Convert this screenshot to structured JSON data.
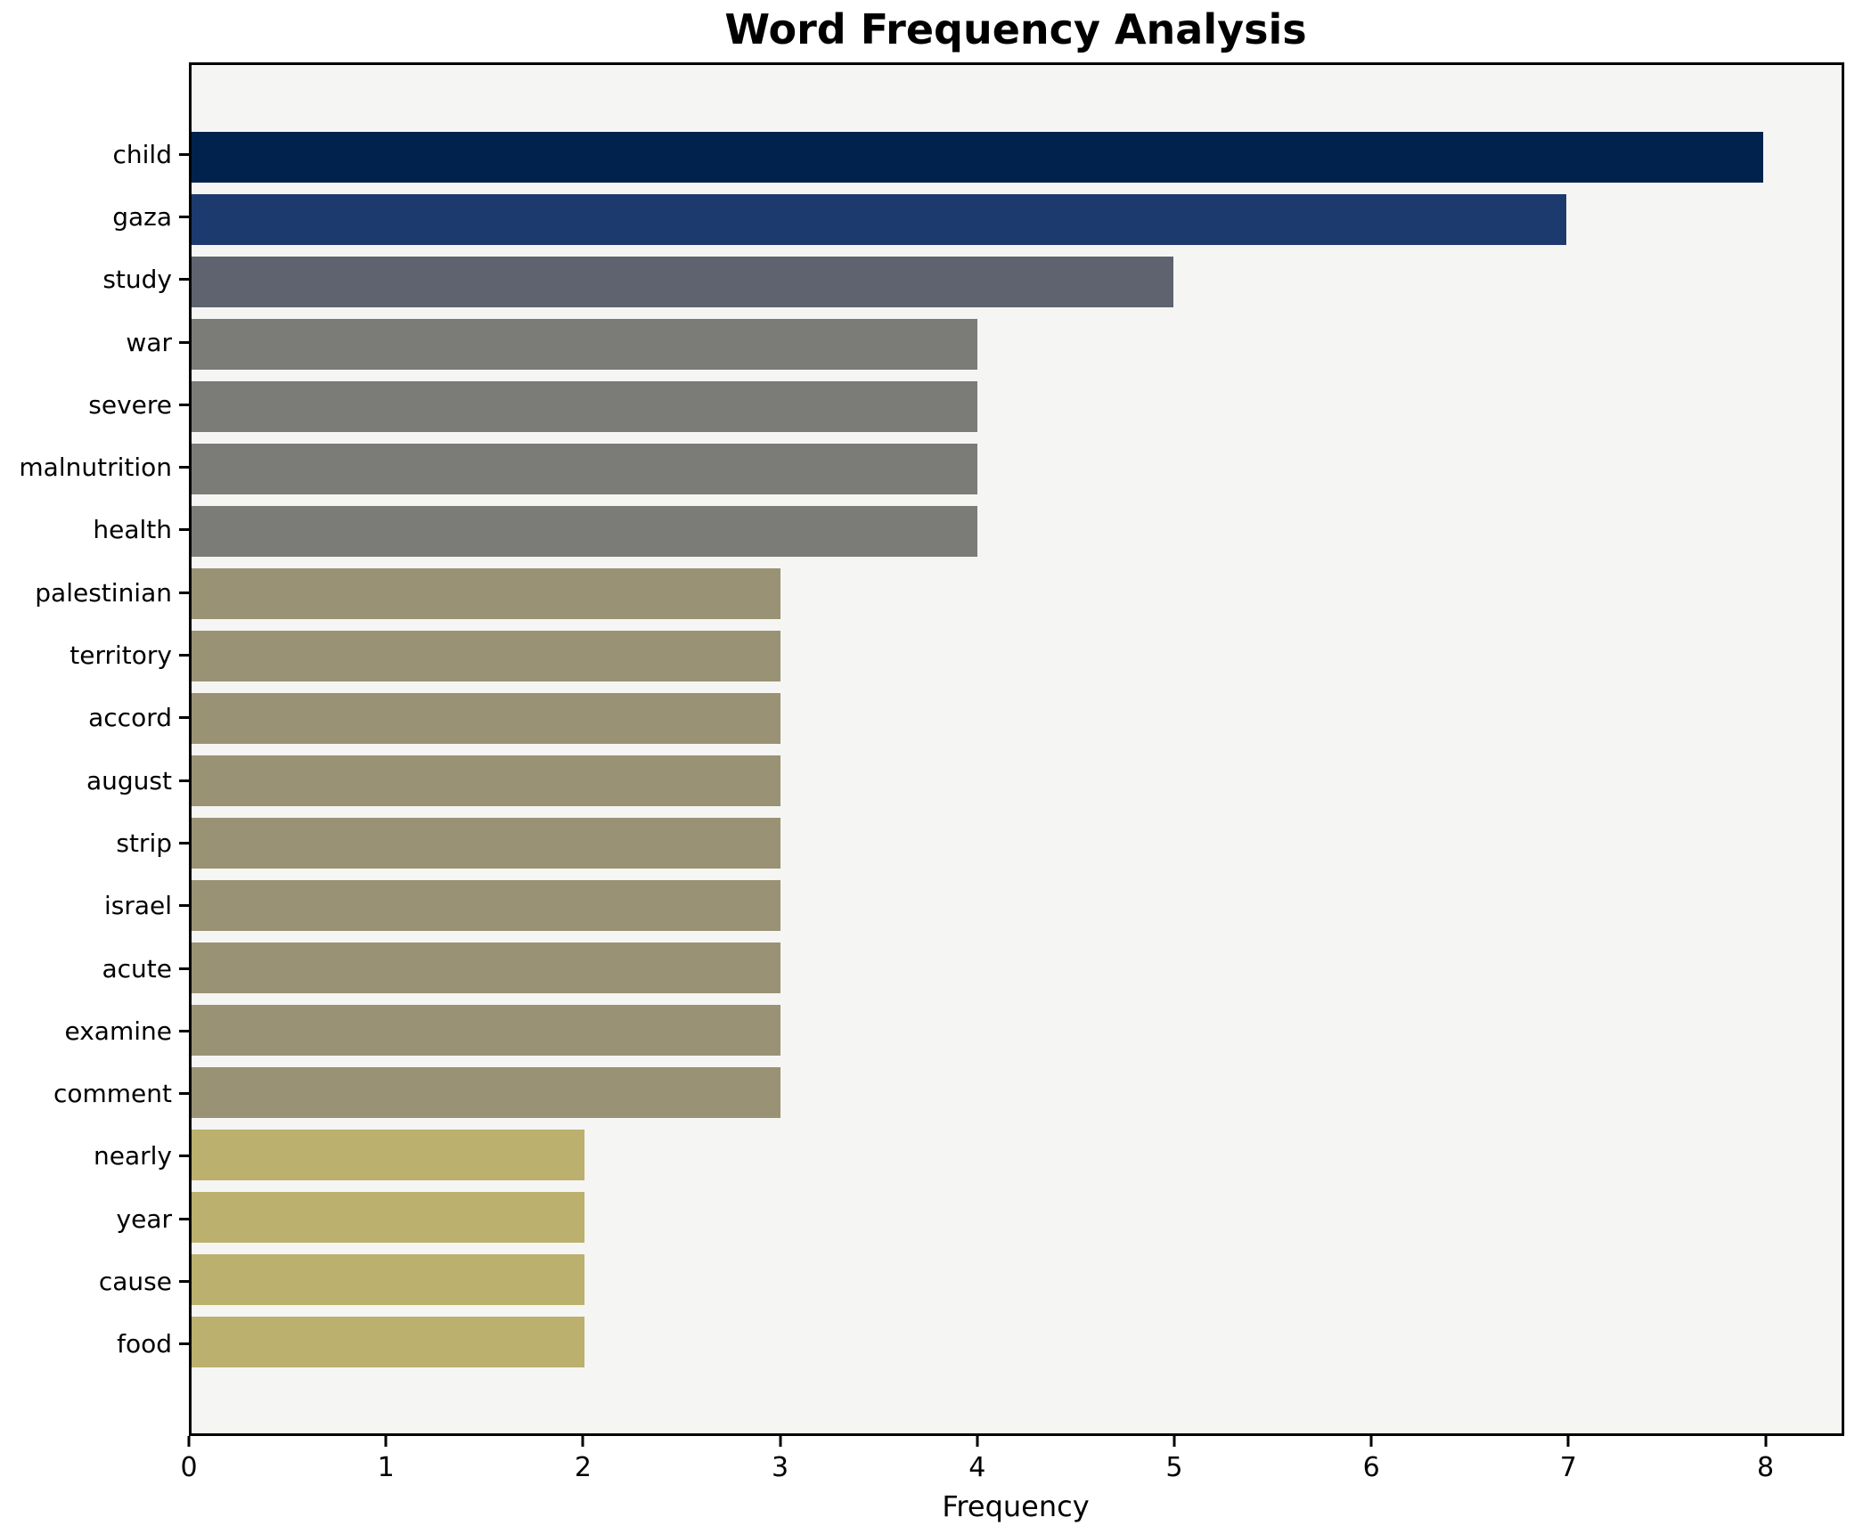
{
  "chart_data": {
    "type": "bar",
    "orientation": "horizontal",
    "title": "Word Frequency Analysis",
    "xlabel": "Frequency",
    "ylabel": "",
    "grid": false,
    "legend": null,
    "xlim": [
      0,
      8.4
    ],
    "x_ticks": [
      "0",
      "1",
      "2",
      "3",
      "4",
      "5",
      "6",
      "7",
      "8"
    ],
    "categories": [
      "child",
      "gaza",
      "study",
      "war",
      "severe",
      "malnutrition",
      "health",
      "palestinian",
      "territory",
      "accord",
      "august",
      "strip",
      "israel",
      "acute",
      "examine",
      "comment",
      "nearly",
      "year",
      "cause",
      "food"
    ],
    "values": [
      8,
      7,
      5,
      4,
      4,
      4,
      4,
      3,
      3,
      3,
      3,
      3,
      3,
      3,
      3,
      3,
      2,
      2,
      2,
      2
    ],
    "bar_colors": [
      "#02224e",
      "#1d3a6e",
      "#5e636f",
      "#7b7b77",
      "#7b7b77",
      "#7b7b77",
      "#7b7b77",
      "#9a9274",
      "#9a9274",
      "#9a9274",
      "#9a9274",
      "#9a9274",
      "#9a9274",
      "#9a9274",
      "#9a9274",
      "#9a9274",
      "#bbb06d",
      "#bbb06d",
      "#bbb06d",
      "#bbb06d"
    ],
    "colors": {
      "plot_background": "#f5f5f3",
      "figure_background": "#ffffff",
      "spine": "#000000",
      "text": "#000000"
    }
  }
}
